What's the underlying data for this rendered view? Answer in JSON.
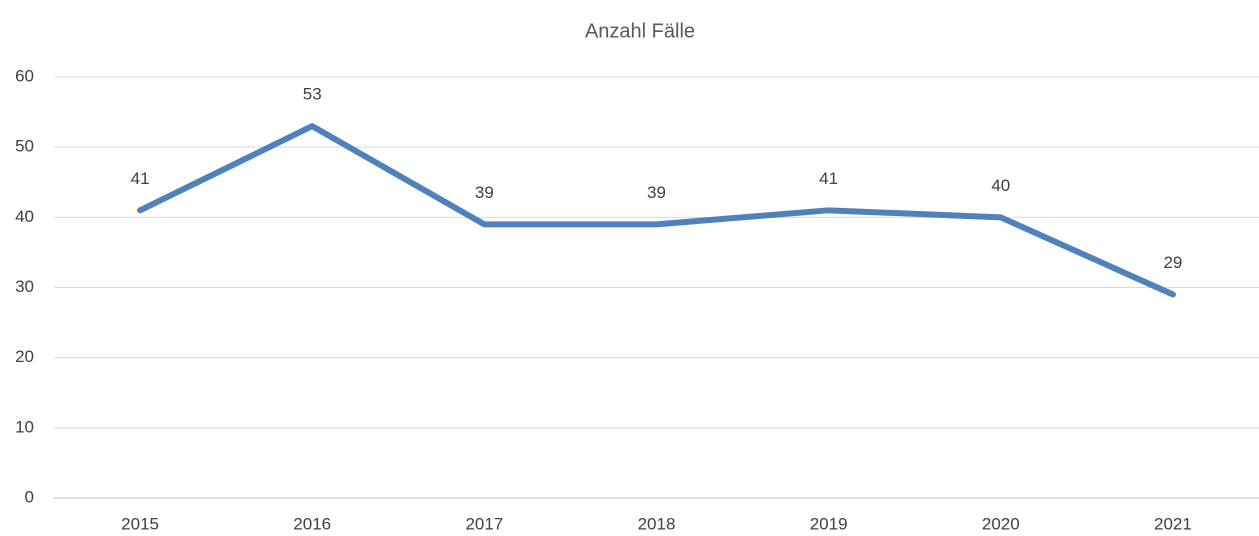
{
  "chart_data": {
    "type": "line",
    "title": "Anzahl Fälle",
    "categories": [
      "2015",
      "2016",
      "2017",
      "2018",
      "2019",
      "2020",
      "2021"
    ],
    "series": [
      {
        "name": "Anzahl Fälle",
        "color": "#4f81bd",
        "values": [
          41,
          53,
          39,
          39,
          41,
          40,
          29
        ]
      }
    ],
    "ylim": [
      0,
      60
    ],
    "yticks": [
      0,
      10,
      20,
      30,
      40,
      50,
      60
    ],
    "grid": true
  }
}
